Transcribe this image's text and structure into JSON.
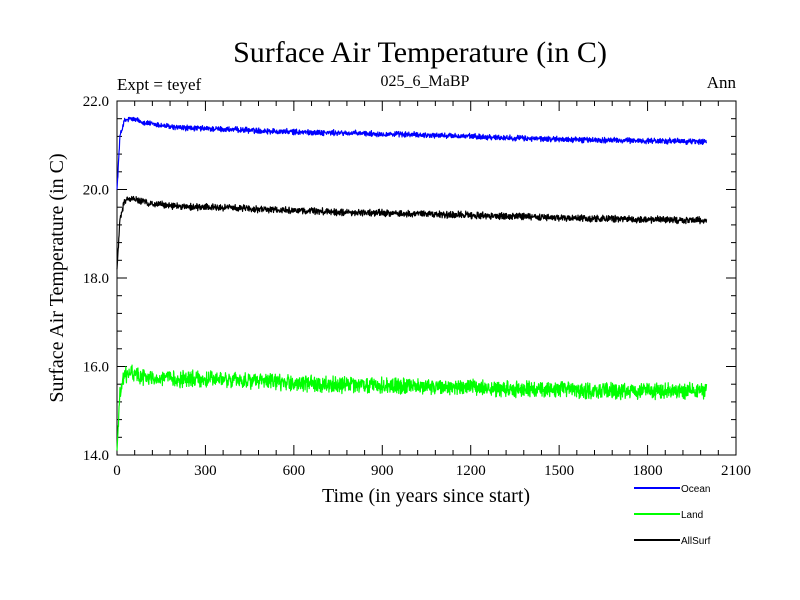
{
  "chart_data": {
    "type": "line",
    "title": "Surface Air Temperature (in C)",
    "subtitle": "025_6_MaBP",
    "left_label": "Expt = teyef",
    "right_label": "Ann",
    "xlabel": "Time (in years since start)",
    "ylabel": "Surface Air Temperature (in C)",
    "xlim": [
      0,
      2100
    ],
    "ylim": [
      14.0,
      22.0
    ],
    "x_ticks": [
      0,
      300,
      600,
      900,
      1200,
      1500,
      1800,
      2100
    ],
    "x_tick_labels": [
      "0",
      "300",
      "600",
      "900",
      "1200",
      "1500",
      "1800",
      "2100"
    ],
    "y_ticks": [
      14.0,
      16.0,
      18.0,
      20.0,
      22.0
    ],
    "y_tick_labels": [
      "14.0",
      "16.0",
      "18.0",
      "20.0",
      "22.0"
    ],
    "legend_position": "bottom-right",
    "series": [
      {
        "name": "Ocean",
        "color": "#0000ff",
        "x": [
          0,
          10,
          25,
          50,
          100,
          200,
          400,
          600,
          800,
          1000,
          1200,
          1400,
          1600,
          1800,
          2000
        ],
        "values": [
          20.0,
          21.2,
          21.55,
          21.6,
          21.5,
          21.4,
          21.35,
          21.3,
          21.27,
          21.24,
          21.2,
          21.15,
          21.12,
          21.1,
          21.08
        ],
        "noise": 0.05
      },
      {
        "name": "Land",
        "color": "#00ff00",
        "x": [
          0,
          10,
          25,
          50,
          100,
          200,
          400,
          600,
          800,
          1000,
          1200,
          1400,
          1600,
          1800,
          2000
        ],
        "values": [
          14.1,
          15.4,
          15.8,
          15.85,
          15.75,
          15.72,
          15.7,
          15.62,
          15.58,
          15.55,
          15.52,
          15.48,
          15.46,
          15.45,
          15.45
        ],
        "noise": 0.14
      },
      {
        "name": "AllSurf",
        "color": "#000000",
        "x": [
          0,
          10,
          25,
          50,
          100,
          200,
          400,
          600,
          800,
          1000,
          1200,
          1400,
          1600,
          1800,
          2000
        ],
        "values": [
          18.2,
          19.3,
          19.75,
          19.8,
          19.7,
          19.62,
          19.58,
          19.52,
          19.48,
          19.45,
          19.42,
          19.38,
          19.35,
          19.32,
          19.3
        ],
        "noise": 0.06
      }
    ]
  }
}
